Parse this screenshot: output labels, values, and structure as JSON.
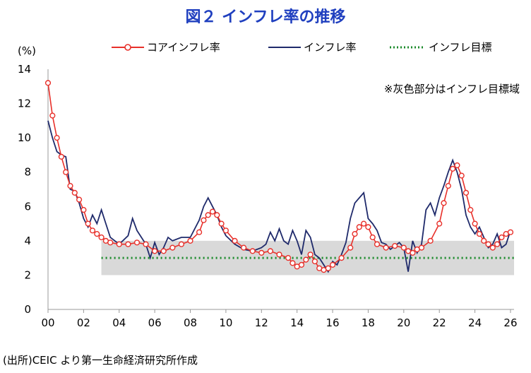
{
  "chart_data": {
    "type": "line",
    "title": "図２ インフレ率の推移",
    "ylabel": "(%)",
    "ylim": [
      0,
      14
    ],
    "yticks": [
      "0",
      "2",
      "4",
      "6",
      "8",
      "10",
      "12",
      "14"
    ],
    "xlim": [
      2000,
      2026.2
    ],
    "xticks": [
      "00",
      "02",
      "04",
      "06",
      "08",
      "10",
      "12",
      "14",
      "16",
      "18",
      "20",
      "22",
      "24",
      "26"
    ],
    "note": "※灰色部分はインフレ目標域",
    "target_band": {
      "from_year": 2003,
      "to_year": 2026.2,
      "low": 2,
      "high": 4
    },
    "series": [
      {
        "name": "コアインフレ率",
        "color": "#e8302a",
        "style": "line-with-circles",
        "points": [
          [
            2000.0,
            13.2
          ],
          [
            2000.25,
            11.3
          ],
          [
            2000.5,
            10.0
          ],
          [
            2000.75,
            8.9
          ],
          [
            2001.0,
            8.0
          ],
          [
            2001.25,
            7.2
          ],
          [
            2001.5,
            6.8
          ],
          [
            2001.75,
            6.4
          ],
          [
            2002.0,
            5.8
          ],
          [
            2002.25,
            5.0
          ],
          [
            2002.5,
            4.6
          ],
          [
            2002.75,
            4.4
          ],
          [
            2003.0,
            4.2
          ],
          [
            2003.25,
            4.0
          ],
          [
            2003.5,
            3.9
          ],
          [
            2004.0,
            3.8
          ],
          [
            2004.5,
            3.8
          ],
          [
            2005.0,
            3.9
          ],
          [
            2005.5,
            3.8
          ],
          [
            2006.0,
            3.4
          ],
          [
            2006.5,
            3.4
          ],
          [
            2007.0,
            3.6
          ],
          [
            2007.5,
            3.8
          ],
          [
            2008.0,
            4.0
          ],
          [
            2008.5,
            4.5
          ],
          [
            2008.75,
            5.2
          ],
          [
            2009.0,
            5.5
          ],
          [
            2009.25,
            5.7
          ],
          [
            2009.5,
            5.5
          ],
          [
            2009.75,
            5.0
          ],
          [
            2010.0,
            4.6
          ],
          [
            2010.5,
            4.0
          ],
          [
            2011.0,
            3.6
          ],
          [
            2011.5,
            3.4
          ],
          [
            2012.0,
            3.3
          ],
          [
            2012.5,
            3.4
          ],
          [
            2013.0,
            3.2
          ],
          [
            2013.5,
            3.0
          ],
          [
            2013.75,
            2.7
          ],
          [
            2014.0,
            2.5
          ],
          [
            2014.25,
            2.6
          ],
          [
            2014.5,
            2.9
          ],
          [
            2014.75,
            3.2
          ],
          [
            2015.0,
            2.8
          ],
          [
            2015.25,
            2.4
          ],
          [
            2015.5,
            2.3
          ],
          [
            2015.75,
            2.4
          ],
          [
            2016.0,
            2.6
          ],
          [
            2016.5,
            3.0
          ],
          [
            2017.0,
            3.6
          ],
          [
            2017.25,
            4.4
          ],
          [
            2017.5,
            4.8
          ],
          [
            2017.75,
            5.0
          ],
          [
            2018.0,
            4.8
          ],
          [
            2018.25,
            4.2
          ],
          [
            2018.5,
            3.8
          ],
          [
            2019.0,
            3.6
          ],
          [
            2019.5,
            3.7
          ],
          [
            2020.0,
            3.6
          ],
          [
            2020.25,
            3.4
          ],
          [
            2020.5,
            3.3
          ],
          [
            2020.75,
            3.5
          ],
          [
            2021.0,
            3.6
          ],
          [
            2021.5,
            4.0
          ],
          [
            2022.0,
            5.0
          ],
          [
            2022.25,
            6.2
          ],
          [
            2022.5,
            7.2
          ],
          [
            2022.75,
            8.2
          ],
          [
            2023.0,
            8.4
          ],
          [
            2023.25,
            7.8
          ],
          [
            2023.5,
            6.8
          ],
          [
            2023.75,
            5.8
          ],
          [
            2024.0,
            5.0
          ],
          [
            2024.25,
            4.4
          ],
          [
            2024.5,
            4.0
          ],
          [
            2024.75,
            3.8
          ],
          [
            2025.0,
            3.6
          ],
          [
            2025.25,
            3.8
          ],
          [
            2025.5,
            4.2
          ],
          [
            2025.75,
            4.4
          ],
          [
            2026.0,
            4.5
          ]
        ]
      },
      {
        "name": "インフレ率",
        "color": "#1f2a6b",
        "style": "line",
        "points": [
          [
            2000.0,
            11.0
          ],
          [
            2000.25,
            10.0
          ],
          [
            2000.5,
            9.2
          ],
          [
            2000.75,
            9.0
          ],
          [
            2001.0,
            8.9
          ],
          [
            2001.25,
            7.0
          ],
          [
            2001.5,
            6.9
          ],
          [
            2001.75,
            6.2
          ],
          [
            2002.0,
            5.3
          ],
          [
            2002.25,
            4.8
          ],
          [
            2002.5,
            5.5
          ],
          [
            2002.75,
            5.0
          ],
          [
            2003.0,
            5.8
          ],
          [
            2003.25,
            5.0
          ],
          [
            2003.5,
            4.2
          ],
          [
            2004.0,
            3.8
          ],
          [
            2004.5,
            4.3
          ],
          [
            2004.75,
            5.3
          ],
          [
            2005.0,
            4.6
          ],
          [
            2005.5,
            3.8
          ],
          [
            2005.75,
            3.0
          ],
          [
            2006.0,
            3.9
          ],
          [
            2006.25,
            3.2
          ],
          [
            2006.5,
            3.6
          ],
          [
            2006.75,
            4.2
          ],
          [
            2007.0,
            4.0
          ],
          [
            2007.5,
            4.2
          ],
          [
            2008.0,
            4.2
          ],
          [
            2008.5,
            5.2
          ],
          [
            2008.75,
            6.0
          ],
          [
            2009.0,
            6.5
          ],
          [
            2009.25,
            6.0
          ],
          [
            2009.5,
            5.5
          ],
          [
            2009.75,
            4.8
          ],
          [
            2010.0,
            4.3
          ],
          [
            2010.5,
            3.8
          ],
          [
            2011.0,
            3.5
          ],
          [
            2011.5,
            3.4
          ],
          [
            2012.0,
            3.6
          ],
          [
            2012.25,
            3.8
          ],
          [
            2012.5,
            4.5
          ],
          [
            2012.75,
            4.0
          ],
          [
            2013.0,
            4.7
          ],
          [
            2013.25,
            4.0
          ],
          [
            2013.5,
            3.8
          ],
          [
            2013.75,
            4.6
          ],
          [
            2014.0,
            4.0
          ],
          [
            2014.25,
            3.2
          ],
          [
            2014.5,
            4.6
          ],
          [
            2014.75,
            4.2
          ],
          [
            2015.0,
            3.2
          ],
          [
            2015.25,
            3.0
          ],
          [
            2015.5,
            2.6
          ],
          [
            2015.75,
            2.2
          ],
          [
            2016.0,
            2.8
          ],
          [
            2016.25,
            2.6
          ],
          [
            2016.5,
            3.2
          ],
          [
            2016.75,
            3.9
          ],
          [
            2017.0,
            5.3
          ],
          [
            2017.25,
            6.2
          ],
          [
            2017.5,
            6.5
          ],
          [
            2017.75,
            6.8
          ],
          [
            2018.0,
            5.3
          ],
          [
            2018.25,
            5.0
          ],
          [
            2018.5,
            4.6
          ],
          [
            2018.75,
            3.9
          ],
          [
            2019.0,
            3.8
          ],
          [
            2019.25,
            3.5
          ],
          [
            2019.5,
            3.7
          ],
          [
            2019.75,
            3.9
          ],
          [
            2020.0,
            3.6
          ],
          [
            2020.25,
            2.2
          ],
          [
            2020.5,
            4.0
          ],
          [
            2020.75,
            3.3
          ],
          [
            2021.0,
            3.8
          ],
          [
            2021.25,
            5.8
          ],
          [
            2021.5,
            6.2
          ],
          [
            2021.75,
            5.5
          ],
          [
            2022.0,
            6.5
          ],
          [
            2022.25,
            7.2
          ],
          [
            2022.5,
            8.0
          ],
          [
            2022.75,
            8.7
          ],
          [
            2023.0,
            8.0
          ],
          [
            2023.25,
            7.0
          ],
          [
            2023.5,
            5.5
          ],
          [
            2023.75,
            4.8
          ],
          [
            2024.0,
            4.4
          ],
          [
            2024.25,
            4.8
          ],
          [
            2024.5,
            4.2
          ],
          [
            2024.75,
            3.6
          ],
          [
            2025.0,
            3.8
          ],
          [
            2025.25,
            4.4
          ],
          [
            2025.5,
            3.6
          ],
          [
            2025.75,
            3.8
          ],
          [
            2026.0,
            4.6
          ]
        ]
      },
      {
        "name": "インフレ目標",
        "color": "#1a8a2a",
        "style": "dotted",
        "points": [
          [
            2003.0,
            3.0
          ],
          [
            2026.2,
            3.0
          ]
        ]
      }
    ]
  },
  "source": "(出所)CEIC より第一生命経済研究所作成"
}
